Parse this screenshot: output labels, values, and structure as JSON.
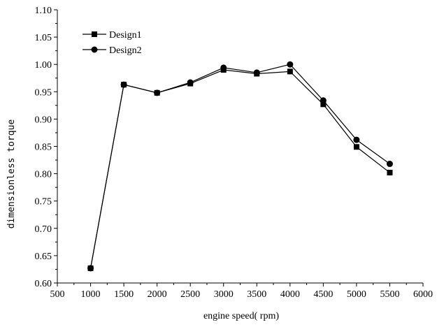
{
  "chart_data": {
    "type": "line",
    "xlabel": "engine speed( rpm)",
    "ylabel": "dimensionless torque",
    "xlim": [
      500,
      6000
    ],
    "ylim": [
      0.6,
      1.1
    ],
    "xticks": [
      "500",
      "1000",
      "1500",
      "2000",
      "2500",
      "3000",
      "3500",
      "4000",
      "4500",
      "5000",
      "5500",
      "6000"
    ],
    "yticks": [
      "0.60",
      "0.65",
      "0.70",
      "0.75",
      "0.80",
      "0.85",
      "0.90",
      "0.95",
      "1.00",
      "1.05",
      "1.10"
    ],
    "grid": false,
    "legend_position": "top-left",
    "x": [
      1000,
      1500,
      2000,
      2500,
      3000,
      3500,
      4000,
      4500,
      5000,
      5500
    ],
    "series": [
      {
        "name": "Design1",
        "marker": "square",
        "color": "#000000",
        "values": [
          0.627,
          0.963,
          0.948,
          0.965,
          0.99,
          0.983,
          0.987,
          0.927,
          0.849,
          0.802
        ]
      },
      {
        "name": "Design2",
        "marker": "circle",
        "color": "#000000",
        "values": [
          0.627,
          0.963,
          0.948,
          0.967,
          0.994,
          0.985,
          1.0,
          0.934,
          0.862,
          0.818
        ]
      }
    ]
  }
}
